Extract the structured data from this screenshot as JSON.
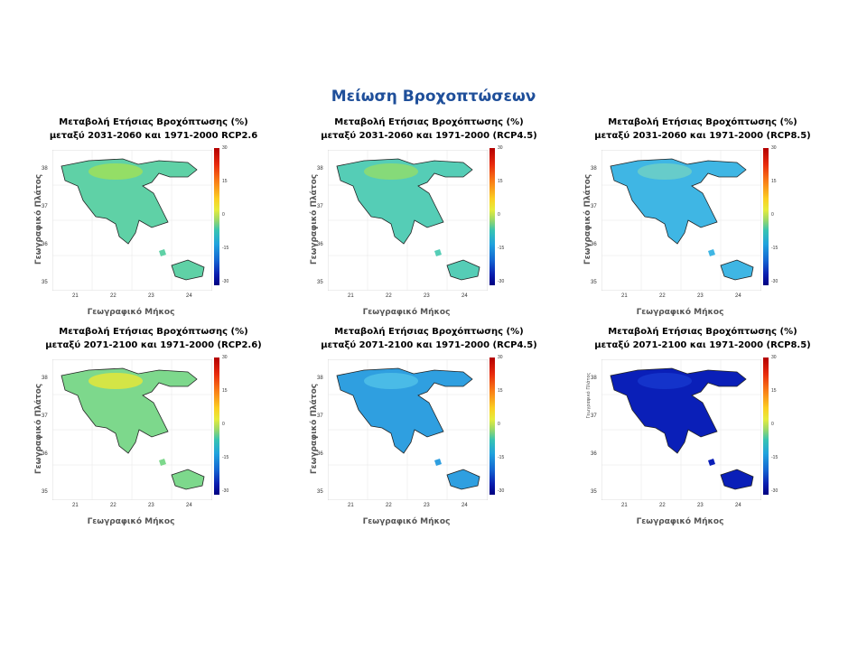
{
  "title": "Μείωση Βροχοπτώσεων",
  "colorbar_ticks": [
    "30",
    "15",
    "0",
    "-15",
    "-30"
  ],
  "y_ticks": [
    "38",
    "37",
    "36",
    "35"
  ],
  "x_ticks": [
    "21",
    "22",
    "23",
    "24"
  ],
  "panels": [
    {
      "title1": "Μεταβολή Ετήσιας Βροχόπτωσης (%)",
      "title2": "μεταξύ 2031-2060 και 1971-2000 RCP2.6",
      "ylabel": "Γεωγραφικό Πλάτος",
      "xlabel": "Γεωγραφικό Μήκος",
      "fill": "#5fd1a6",
      "accent": "#9ee05a"
    },
    {
      "title1": "Μεταβολή Ετήσιας Βροχόπτωσης (%)",
      "title2": "μεταξύ 2031-2060 και 1971-2000 (RCP4.5)",
      "ylabel": "Γεωγραφικό Πλάτος",
      "xlabel": "Γεωγραφικό Μήκος",
      "fill": "#55cdb6",
      "accent": "#8fdc6e"
    },
    {
      "title1": "Μεταβολή Ετήσιας Βροχόπτωσης (%)",
      "title2": "μεταξύ 2031-2060 και 1971-2000 (RCP8.5)",
      "ylabel": "Γεωγραφικό Πλάτος",
      "xlabel": "Γεωγραφικό Μήκος",
      "fill": "#3fb6e4",
      "accent": "#6fd0c5"
    },
    {
      "title1": "Μεταβολή Ετήσιας Βροχόπτωσης (%)",
      "title2": "μεταξύ 2071-2100 και 1971-2000 (RCP2.6)",
      "ylabel": "Γεωγραφικό Πλάτος",
      "xlabel": "Γεωγραφικό Μήκος",
      "fill": "#7dd88c",
      "accent": "#e3e83a"
    },
    {
      "title1": "Μεταβολή Ετήσιας Βροχόπτωσης (%)",
      "title2": "μεταξύ 2071-2100 και 1971-2000 (RCP4.5)",
      "ylabel": "Γεωγραφικό Πλάτος",
      "xlabel": "Γεωγραφικό Μήκος",
      "fill": "#2f9fe0",
      "accent": "#4fbfe8"
    },
    {
      "title1": "Μεταβολή Ετήσιας Βροχόπτωσης (%)",
      "title2": "μεταξύ 2071-2100 και 1971-2000 (RCP8.5)",
      "ylabel": "Γεωγραφικό Πλάτος",
      "xlabel": "Γεωγραφικό Μήκος",
      "fill": "#0a1fb8",
      "accent": "#1637cc"
    }
  ]
}
